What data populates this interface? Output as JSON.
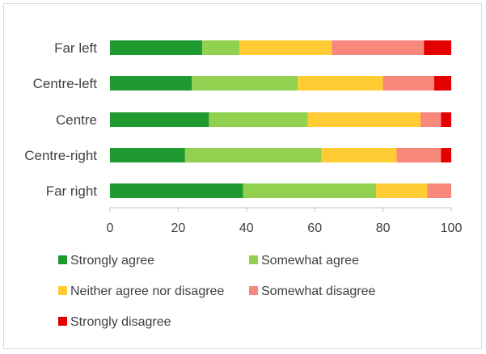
{
  "chart_data": {
    "type": "bar",
    "orientation": "horizontal",
    "stacked": true,
    "categories": [
      "Far left",
      "Centre-left",
      "Centre",
      "Centre-right",
      "Far right"
    ],
    "series": [
      {
        "name": "Strongly agree",
        "color": "#1f9a31",
        "values": [
          27,
          24,
          29,
          22,
          39
        ]
      },
      {
        "name": "Somewhat agree",
        "color": "#92d050",
        "values": [
          11,
          31,
          29,
          40,
          39
        ]
      },
      {
        "name": "Neither agree nor disagree",
        "color": "#ffcc33",
        "values": [
          27,
          25,
          33,
          22,
          15
        ]
      },
      {
        "name": "Somewhat disagree",
        "color": "#f8877c",
        "values": [
          27,
          15,
          6,
          13,
          7
        ]
      },
      {
        "name": "Strongly disagree",
        "color": "#e50000",
        "values": [
          8,
          5,
          3,
          3,
          0
        ]
      }
    ],
    "xlim": [
      0,
      100
    ],
    "xticks": [
      "0",
      "20",
      "40",
      "60",
      "80",
      "100"
    ],
    "grid": false,
    "legend_position": "bottom"
  }
}
